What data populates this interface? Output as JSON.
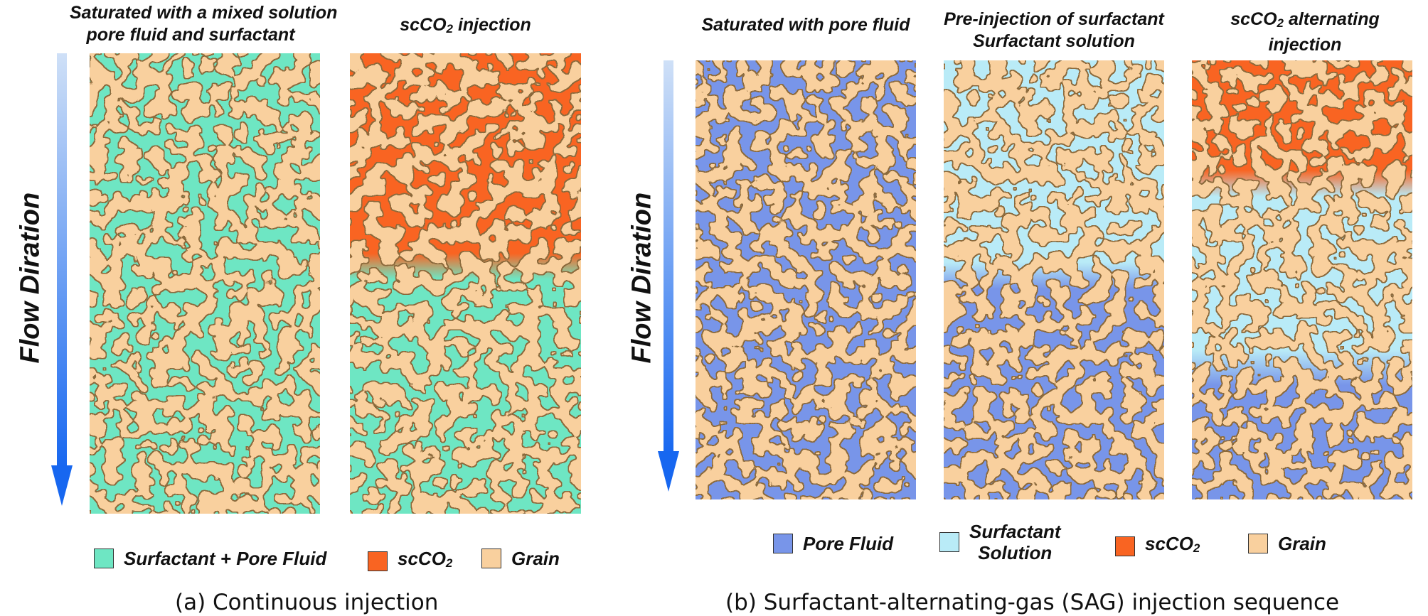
{
  "colors": {
    "grain": "#f9d09e",
    "grain_edge": "#8c6a3c",
    "surf_pore": "#6ee6c3",
    "scco2": "#f96422",
    "pore": "#7895e9",
    "surfactant": "#b9ebf7",
    "arrow_top": "#cfe0f7",
    "arrow_bottom": "#1767f0"
  },
  "a": {
    "flow_label": "Flow Diration",
    "titles": [
      {
        "line1": "Saturated with a mixed  solution",
        "line2": "pore fluid and surfactant"
      },
      {
        "line1_main": "scCO",
        "line1_sub": "2",
        "line1_tail": " injection"
      }
    ],
    "legend": [
      {
        "label": "Surfactant + Pore Fluid",
        "color": "surf_pore"
      },
      {
        "label_main": "scCO",
        "label_sub": "2",
        "color": "scco2"
      },
      {
        "label": "Grain",
        "color": "grain"
      }
    ],
    "caption": "(a) Continuous  injection"
  },
  "b": {
    "flow_label": "Flow Diration",
    "titles": [
      {
        "line1": "Saturated with pore fluid"
      },
      {
        "line1": "Pre-injection of surfactant",
        "line2": "Surfactant solution"
      },
      {
        "line1_main": "scCO",
        "line1_sub": "2",
        "line1_tail": "  alternating",
        "line2": "injection"
      }
    ],
    "legend": [
      {
        "label": "Pore Fluid",
        "color": "pore"
      },
      {
        "label_line1": "Surfactant",
        "label_line2": "Solution",
        "color": "surfactant"
      },
      {
        "label_main": "scCO",
        "label_sub": "2",
        "color": "scco2"
      },
      {
        "label": "Grain",
        "color": "grain"
      }
    ],
    "caption": "(b) Surfactant-alternating-gas (SAG) injection sequence"
  }
}
